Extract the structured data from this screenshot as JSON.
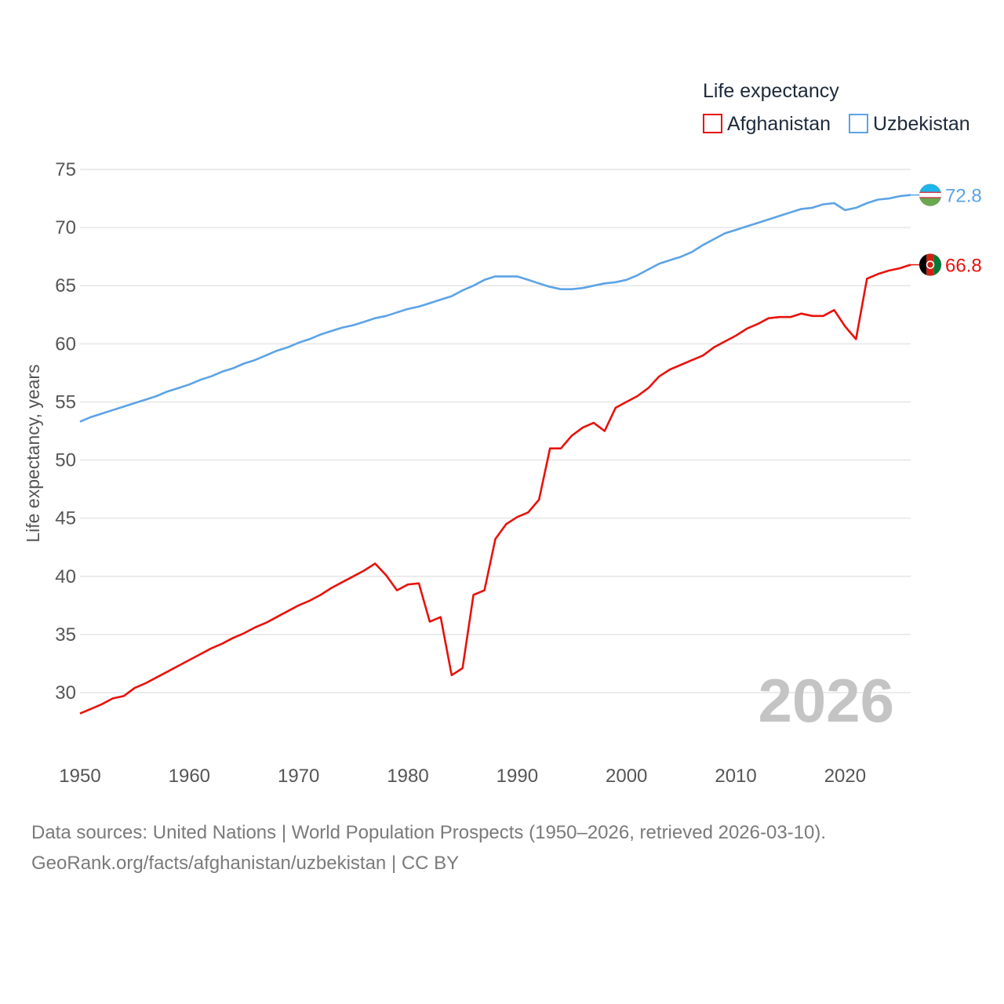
{
  "chart_data": {
    "type": "line",
    "title": "Life expectancy",
    "xlabel": "",
    "ylabel": "Life expectancy, years",
    "xlim": [
      1950,
      2026
    ],
    "ylim": [
      27,
      76
    ],
    "xticks": [
      1950,
      1960,
      1970,
      1980,
      1990,
      2000,
      2010,
      2020
    ],
    "yticks": [
      30,
      35,
      40,
      45,
      50,
      55,
      60,
      65,
      70,
      75
    ],
    "year_label": "2026",
    "series": [
      {
        "name": "Afghanistan",
        "color": "#e8120c",
        "end_label": "66.8",
        "points": [
          [
            1950,
            28.2
          ],
          [
            1951,
            28.6
          ],
          [
            1952,
            29.0
          ],
          [
            1953,
            29.5
          ],
          [
            1954,
            29.7
          ],
          [
            1955,
            30.4
          ],
          [
            1956,
            30.8
          ],
          [
            1957,
            31.3
          ],
          [
            1958,
            31.8
          ],
          [
            1959,
            32.3
          ],
          [
            1960,
            32.8
          ],
          [
            1961,
            33.3
          ],
          [
            1962,
            33.8
          ],
          [
            1963,
            34.2
          ],
          [
            1964,
            34.7
          ],
          [
            1965,
            35.1
          ],
          [
            1966,
            35.6
          ],
          [
            1967,
            36.0
          ],
          [
            1968,
            36.5
          ],
          [
            1969,
            37.0
          ],
          [
            1970,
            37.5
          ],
          [
            1971,
            37.9
          ],
          [
            1972,
            38.4
          ],
          [
            1973,
            39.0
          ],
          [
            1974,
            39.5
          ],
          [
            1975,
            40.0
          ],
          [
            1976,
            40.5
          ],
          [
            1977,
            41.1
          ],
          [
            1978,
            40.1
          ],
          [
            1979,
            38.8
          ],
          [
            1980,
            39.3
          ],
          [
            1981,
            39.4
          ],
          [
            1982,
            36.1
          ],
          [
            1983,
            36.5
          ],
          [
            1984,
            31.5
          ],
          [
            1985,
            32.1
          ],
          [
            1986,
            38.4
          ],
          [
            1987,
            38.8
          ],
          [
            1988,
            43.2
          ],
          [
            1989,
            44.5
          ],
          [
            1990,
            45.1
          ],
          [
            1991,
            45.5
          ],
          [
            1992,
            46.6
          ],
          [
            1993,
            51.0
          ],
          [
            1994,
            51.0
          ],
          [
            1995,
            52.1
          ],
          [
            1996,
            52.8
          ],
          [
            1997,
            53.2
          ],
          [
            1998,
            52.5
          ],
          [
            1999,
            54.5
          ],
          [
            2000,
            55.0
          ],
          [
            2001,
            55.5
          ],
          [
            2002,
            56.2
          ],
          [
            2003,
            57.2
          ],
          [
            2004,
            57.8
          ],
          [
            2005,
            58.2
          ],
          [
            2006,
            58.6
          ],
          [
            2007,
            59.0
          ],
          [
            2008,
            59.7
          ],
          [
            2009,
            60.2
          ],
          [
            2010,
            60.7
          ],
          [
            2011,
            61.3
          ],
          [
            2012,
            61.7
          ],
          [
            2013,
            62.2
          ],
          [
            2014,
            62.3
          ],
          [
            2015,
            62.3
          ],
          [
            2016,
            62.6
          ],
          [
            2017,
            62.4
          ],
          [
            2018,
            62.4
          ],
          [
            2019,
            62.9
          ],
          [
            2020,
            61.5
          ],
          [
            2021,
            60.4
          ],
          [
            2022,
            65.6
          ],
          [
            2023,
            66.0
          ],
          [
            2024,
            66.3
          ],
          [
            2025,
            66.5
          ],
          [
            2026,
            66.8
          ]
        ]
      },
      {
        "name": "Uzbekistan",
        "color": "#5ca3e6",
        "end_label": "72.8",
        "points": [
          [
            1950,
            53.3
          ],
          [
            1951,
            53.7
          ],
          [
            1952,
            54.0
          ],
          [
            1953,
            54.3
          ],
          [
            1954,
            54.6
          ],
          [
            1955,
            54.9
          ],
          [
            1956,
            55.2
          ],
          [
            1957,
            55.5
          ],
          [
            1958,
            55.9
          ],
          [
            1959,
            56.2
          ],
          [
            1960,
            56.5
          ],
          [
            1961,
            56.9
          ],
          [
            1962,
            57.2
          ],
          [
            1963,
            57.6
          ],
          [
            1964,
            57.9
          ],
          [
            1965,
            58.3
          ],
          [
            1966,
            58.6
          ],
          [
            1967,
            59.0
          ],
          [
            1968,
            59.4
          ],
          [
            1969,
            59.7
          ],
          [
            1970,
            60.1
          ],
          [
            1971,
            60.4
          ],
          [
            1972,
            60.8
          ],
          [
            1973,
            61.1
          ],
          [
            1974,
            61.4
          ],
          [
            1975,
            61.6
          ],
          [
            1976,
            61.9
          ],
          [
            1977,
            62.2
          ],
          [
            1978,
            62.4
          ],
          [
            1979,
            62.7
          ],
          [
            1980,
            63.0
          ],
          [
            1981,
            63.2
          ],
          [
            1982,
            63.5
          ],
          [
            1983,
            63.8
          ],
          [
            1984,
            64.1
          ],
          [
            1985,
            64.6
          ],
          [
            1986,
            65.0
          ],
          [
            1987,
            65.5
          ],
          [
            1988,
            65.8
          ],
          [
            1989,
            65.8
          ],
          [
            1990,
            65.8
          ],
          [
            1991,
            65.5
          ],
          [
            1992,
            65.2
          ],
          [
            1993,
            64.9
          ],
          [
            1994,
            64.7
          ],
          [
            1995,
            64.7
          ],
          [
            1996,
            64.8
          ],
          [
            1997,
            65.0
          ],
          [
            1998,
            65.2
          ],
          [
            1999,
            65.3
          ],
          [
            2000,
            65.5
          ],
          [
            2001,
            65.9
          ],
          [
            2002,
            66.4
          ],
          [
            2003,
            66.9
          ],
          [
            2004,
            67.2
          ],
          [
            2005,
            67.5
          ],
          [
            2006,
            67.9
          ],
          [
            2007,
            68.5
          ],
          [
            2008,
            69.0
          ],
          [
            2009,
            69.5
          ],
          [
            2010,
            69.8
          ],
          [
            2011,
            70.1
          ],
          [
            2012,
            70.4
          ],
          [
            2013,
            70.7
          ],
          [
            2014,
            71.0
          ],
          [
            2015,
            71.3
          ],
          [
            2016,
            71.6
          ],
          [
            2017,
            71.7
          ],
          [
            2018,
            72.0
          ],
          [
            2019,
            72.1
          ],
          [
            2020,
            71.5
          ],
          [
            2021,
            71.7
          ],
          [
            2022,
            72.1
          ],
          [
            2023,
            72.4
          ],
          [
            2024,
            72.5
          ],
          [
            2025,
            72.7
          ],
          [
            2026,
            72.8
          ]
        ]
      }
    ]
  },
  "legend": {
    "title": "Life expectancy",
    "items": [
      "Afghanistan",
      "Uzbekistan"
    ]
  },
  "footer": {
    "line1": "Data sources: United Nations | World Population Prospects (1950–2026, retrieved 2026-03-10).",
    "line2": "GeoRank.org/facts/afghanistan/uzbekistan | CC BY"
  },
  "flags": {
    "afghanistan": [
      "#000000",
      "#d32011",
      "#007a36"
    ],
    "uzbekistan": [
      "#1eb5e9",
      "#ffffff",
      "#ce1126",
      "#6aa84f"
    ]
  }
}
